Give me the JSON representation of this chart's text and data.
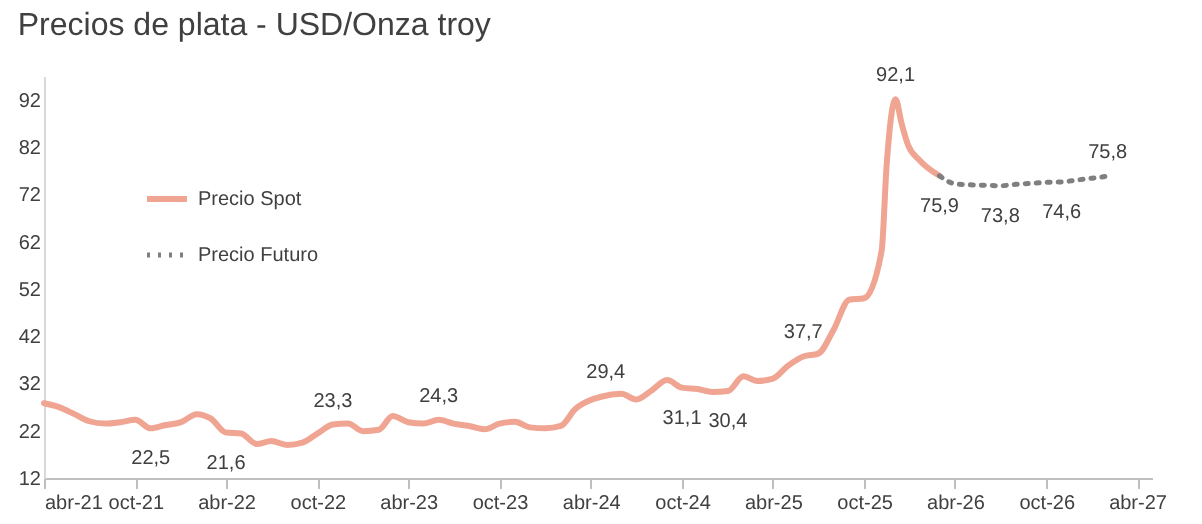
{
  "chart_data": {
    "type": "line",
    "title": "Precios de plata - USD/Onza troy",
    "series": [
      {
        "name": "Precio Spot",
        "color": "#f0a492",
        "line_style": "solid",
        "x": [
          "2021-04",
          "2021-05",
          "2021-06",
          "2021-07",
          "2021-08",
          "2021-09",
          "2021-10",
          "2021-11",
          "2021-12",
          "2022-01",
          "2022-02",
          "2022-03",
          "2022-04",
          "2022-05",
          "2022-06",
          "2022-07",
          "2022-08",
          "2022-09",
          "2022-10",
          "2022-11",
          "2022-12",
          "2023-01",
          "2023-02",
          "2023-03",
          "2023-04",
          "2023-05",
          "2023-06",
          "2023-07",
          "2023-08",
          "2023-09",
          "2023-10",
          "2023-11",
          "2023-12",
          "2024-01",
          "2024-02",
          "2024-03",
          "2024-04",
          "2024-05",
          "2024-06",
          "2024-07",
          "2024-08",
          "2024-09",
          "2024-10",
          "2024-11",
          "2024-12",
          "2025-01",
          "2025-02",
          "2025-03",
          "2025-04",
          "2025-05",
          "2025-06",
          "2025-07",
          "2025-08",
          "2025-09",
          "2025-10",
          "2025-11-05",
          "2025-11-15",
          "2025-12-03",
          "2025-12-15",
          "2025-12-28",
          "2026-01-20",
          "2026-03-01"
        ],
        "values": [
          27.8,
          27.0,
          25.5,
          24.0,
          23.5,
          23.8,
          24.3,
          22.5,
          23.2,
          23.8,
          25.5,
          24.6,
          21.6,
          21.4,
          19.2,
          19.8,
          19.0,
          19.5,
          21.4,
          23.3,
          23.5,
          21.9,
          22.2,
          25.1,
          23.8,
          23.5,
          24.3,
          23.5,
          23.0,
          22.3,
          23.5,
          23.9,
          22.7,
          22.5,
          23.0,
          26.6,
          28.5,
          29.4,
          29.8,
          28.6,
          30.5,
          32.7,
          31.1,
          30.8,
          30.2,
          30.4,
          33.5,
          32.5,
          33.0,
          35.7,
          37.7,
          38.3,
          43.4,
          49.7,
          50.0,
          60.0,
          78.0,
          92.1,
          87.0,
          82.4,
          79.2,
          75.9
        ],
        "value_labels": [
          null,
          null,
          null,
          null,
          null,
          null,
          null,
          "22,5",
          null,
          null,
          null,
          null,
          "21,6",
          null,
          null,
          null,
          null,
          null,
          null,
          "23,3",
          null,
          null,
          null,
          null,
          null,
          null,
          "24,3",
          null,
          null,
          null,
          null,
          null,
          null,
          null,
          null,
          null,
          null,
          "29,4",
          null,
          null,
          null,
          null,
          "31,1",
          null,
          null,
          "30,4",
          null,
          null,
          null,
          null,
          "37,7",
          null,
          null,
          null,
          null,
          null,
          null,
          "92,1",
          null,
          null,
          null,
          "75,9"
        ]
      },
      {
        "name": "Precio Futuro",
        "color": "#7f7f7f",
        "line_style": "dotted",
        "x": [
          "2026-03-01",
          "2026-04",
          "2026-05",
          "2026-06",
          "2026-07",
          "2026-08",
          "2026-09",
          "2026-10",
          "2026-11",
          "2026-12",
          "2027-01",
          "2027-02"
        ],
        "values": [
          75.9,
          74.2,
          74.0,
          73.9,
          73.8,
          74.1,
          74.3,
          74.5,
          74.6,
          75.0,
          75.4,
          75.8
        ],
        "value_labels": [
          null,
          null,
          null,
          null,
          "73,8",
          null,
          null,
          null,
          "74,6",
          null,
          null,
          "75,8"
        ]
      }
    ],
    "xlim": [
      "2021-04",
      "2027-05"
    ],
    "xticks": [
      {
        "value": "2021-04",
        "label": "abr-21"
      },
      {
        "value": "2021-10",
        "label": "oct-21"
      },
      {
        "value": "2022-04",
        "label": "abr-22"
      },
      {
        "value": "2022-10",
        "label": "oct-22"
      },
      {
        "value": "2023-04",
        "label": "abr-23"
      },
      {
        "value": "2023-10",
        "label": "oct-23"
      },
      {
        "value": "2024-04",
        "label": "abr-24"
      },
      {
        "value": "2024-10",
        "label": "oct-24"
      },
      {
        "value": "2025-04",
        "label": "abr-25"
      },
      {
        "value": "2025-10",
        "label": "oct-25"
      },
      {
        "value": "2026-04",
        "label": "abr-26"
      },
      {
        "value": "2026-10",
        "label": "oct-26"
      },
      {
        "value": "2027-04",
        "label": "abr-27"
      }
    ],
    "ylim": [
      12,
      97
    ],
    "yticks": [
      12,
      22,
      32,
      42,
      52,
      62,
      72,
      82,
      92
    ],
    "legend": "top left",
    "grid": false
  }
}
